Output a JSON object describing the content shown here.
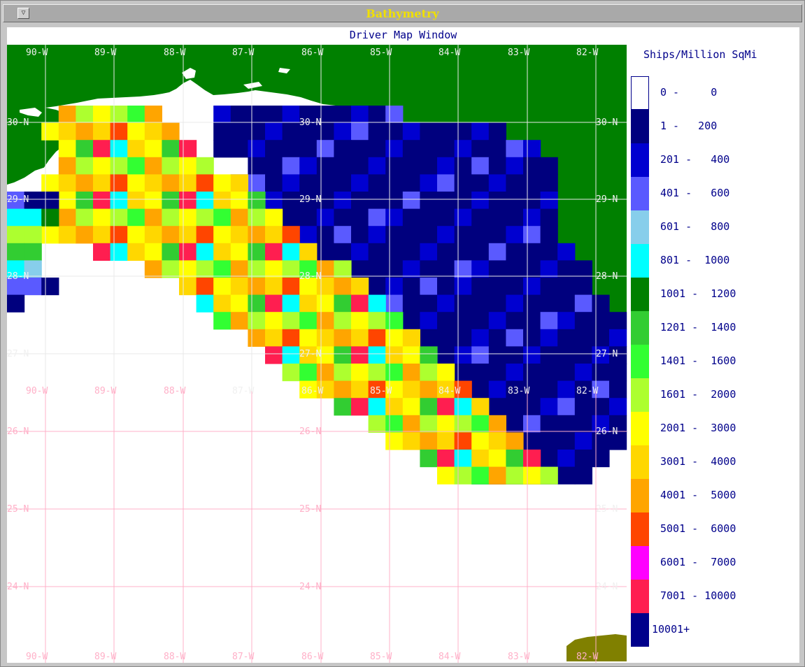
{
  "window": {
    "title": "Bathymetry",
    "menu_glyph": "▽"
  },
  "map": {
    "title": "Driver Map Window",
    "top_lon_labels": [
      "90-W",
      "89-W",
      "88-W",
      "87-W",
      "86-W",
      "85-W",
      "84-W",
      "83-W",
      "82-W"
    ],
    "grid_labels": {
      "lat_left": [
        "30-N",
        "29-N",
        "28-N",
        "27-N",
        "26-N",
        "25-N",
        "24-N"
      ],
      "lat_mid": [
        "30-N",
        "29-N",
        "28-N",
        "27-N",
        "26-N",
        "25-N",
        "24-N"
      ],
      "lat_right": [
        "30-N",
        "29-N",
        "28-N",
        "27-N",
        "26-N",
        "25-N",
        "24-N"
      ],
      "lon_mid": [
        "90-W",
        "89-W",
        "88-W",
        "87-W",
        "86-W",
        "85-W",
        "84-W",
        "83-W",
        "82-W"
      ],
      "lon_bottom": [
        "90-W",
        "89-W",
        "88-W",
        "87-W",
        "86-W",
        "85-W",
        "84-W",
        "83-W",
        "82-W"
      ]
    },
    "colors": {
      "land": "#008000",
      "grid_white": "#e8e8e8",
      "grid_pink": "#ffb0c8",
      "label_white": "#f0f0f0",
      "label_pink": "#ffb0c8"
    }
  },
  "legend": {
    "title": "Ships/Million SqMi",
    "items": [
      {
        "label": "0 -     0",
        "color": "#ffffff"
      },
      {
        "label": "1 -   200",
        "color": "#00007e"
      },
      {
        "label": "201 -   400",
        "color": "#0000d0"
      },
      {
        "label": "401 -   600",
        "color": "#5a5aff"
      },
      {
        "label": "601 -   800",
        "color": "#87ceeb"
      },
      {
        "label": "801 -  1000",
        "color": "#00ffff"
      },
      {
        "label": "1001 -  1200",
        "color": "#008000"
      },
      {
        "label": "1201 -  1400",
        "color": "#32cd32"
      },
      {
        "label": "1401 -  1600",
        "color": "#32ff32"
      },
      {
        "label": "1601 -  2000",
        "color": "#adff2f"
      },
      {
        "label": "2001 -  3000",
        "color": "#ffff00"
      },
      {
        "label": "3001 -  4000",
        "color": "#ffd700"
      },
      {
        "label": "4001 -  5000",
        "color": "#ffa500"
      },
      {
        "label": "5001 -  6000",
        "color": "#ff4500"
      },
      {
        "label": "6001 -  7000",
        "color": "#ff00ff"
      },
      {
        "label": "7001 - 10000",
        "color": "#ff1e50"
      },
      {
        "label": "10001+",
        "color": "#00008b"
      }
    ]
  }
}
